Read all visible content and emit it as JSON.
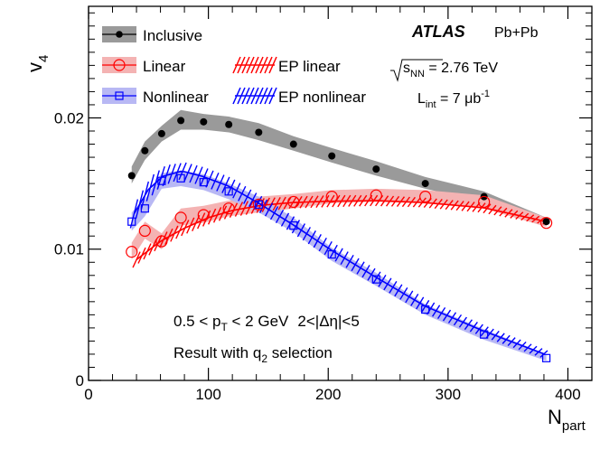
{
  "chart_data": {
    "type": "scatter",
    "title": "",
    "xlabel": "N",
    "xlabel_sub": "part",
    "ylabel": "v",
    "ylabel_sub": "4",
    "xlim": [
      0,
      420
    ],
    "ylim": [
      0,
      0.0285
    ],
    "x_ticks": [
      0,
      100,
      200,
      300,
      400
    ],
    "x_tick_labels": [
      "0",
      "100",
      "200",
      "300",
      "400"
    ],
    "y_ticks": [
      0,
      0.01,
      0.02
    ],
    "y_tick_labels": [
      "0",
      "0.01",
      "0.02"
    ],
    "x": [
      36,
      47,
      61,
      77,
      96,
      117,
      142,
      171,
      203,
      240,
      281,
      330,
      382
    ],
    "series": [
      {
        "name": "Inclusive",
        "marker": "filled-circle",
        "color": "#000000",
        "band_color": "#9a9a9a",
        "values": [
          0.0156,
          0.0175,
          0.0188,
          0.0198,
          0.0197,
          0.0195,
          0.0189,
          0.018,
          0.0171,
          0.0161,
          0.015,
          0.014,
          0.0121
        ],
        "band_low": [
          0.015,
          0.0168,
          0.0182,
          0.0191,
          0.0191,
          0.0189,
          0.0183,
          0.0175,
          0.0166,
          0.0156,
          0.0146,
          0.0136,
          0.0118
        ],
        "band_high": [
          0.0163,
          0.0182,
          0.0194,
          0.0206,
          0.0203,
          0.0201,
          0.0196,
          0.0186,
          0.0177,
          0.0167,
          0.0155,
          0.0144,
          0.0124
        ]
      },
      {
        "name": "Linear",
        "marker": "open-circle",
        "color": "#ff0000",
        "band_color": "#f4b3b3",
        "values": [
          0.0098,
          0.0114,
          0.0106,
          0.0124,
          0.0126,
          0.0131,
          0.0134,
          0.0136,
          0.014,
          0.0141,
          0.014,
          0.0136,
          0.012
        ],
        "band_low": [
          0.0092,
          0.0108,
          0.01,
          0.0118,
          0.012,
          0.0125,
          0.0128,
          0.0131,
          0.0135,
          0.0136,
          0.0135,
          0.0131,
          0.0117
        ],
        "band_high": [
          0.0105,
          0.0121,
          0.0112,
          0.0131,
          0.0133,
          0.0137,
          0.014,
          0.0142,
          0.0145,
          0.0146,
          0.0145,
          0.0141,
          0.0124
        ]
      },
      {
        "name": "Nonlinear",
        "marker": "open-square",
        "color": "#0000ff",
        "band_color": "#b8b8f4",
        "values": [
          0.0121,
          0.0131,
          0.0152,
          0.0154,
          0.0151,
          0.0144,
          0.0134,
          0.0118,
          0.0096,
          0.0077,
          0.0054,
          0.0035,
          0.0017
        ],
        "band_low": [
          0.0114,
          0.0125,
          0.0146,
          0.0148,
          0.0145,
          0.0138,
          0.0128,
          0.0113,
          0.0091,
          0.0072,
          0.005,
          0.0031,
          0.0015
        ],
        "band_high": [
          0.0128,
          0.0138,
          0.0158,
          0.016,
          0.0157,
          0.015,
          0.014,
          0.0124,
          0.0101,
          0.0082,
          0.0058,
          0.0039,
          0.002
        ]
      }
    ],
    "ep_curves": [
      {
        "name": "EP linear",
        "color": "#ff0000",
        "x": [
          40,
          60,
          80,
          100,
          120,
          145,
          170,
          200,
          240,
          280,
          330,
          382
        ],
        "low": [
          0.0086,
          0.01,
          0.011,
          0.0118,
          0.0124,
          0.0128,
          0.0131,
          0.0132,
          0.0133,
          0.0132,
          0.0128,
          0.0119
        ],
        "high": [
          0.0098,
          0.0112,
          0.0122,
          0.013,
          0.0135,
          0.0139,
          0.014,
          0.0141,
          0.0141,
          0.0139,
          0.0135,
          0.0123
        ]
      },
      {
        "name": "EP nonlinear",
        "color": "#0000ff",
        "x": [
          38,
          50,
          62,
          78,
          95,
          117,
          142,
          170,
          203,
          240,
          281,
          330,
          382
        ],
        "low": [
          0.0116,
          0.0135,
          0.0147,
          0.0153,
          0.0149,
          0.0142,
          0.013,
          0.0114,
          0.0094,
          0.0074,
          0.0052,
          0.0034,
          0.0017
        ],
        "high": [
          0.0138,
          0.0156,
          0.0164,
          0.0166,
          0.0162,
          0.0154,
          0.014,
          0.0124,
          0.0104,
          0.0083,
          0.0061,
          0.0041,
          0.0022
        ]
      }
    ],
    "legend": {
      "placement": "top-left",
      "entries": [
        "Inclusive",
        "Linear",
        "Nonlinear",
        "EP linear",
        "EP nonlinear"
      ]
    },
    "annotations": {
      "experiment": "ATLAS",
      "system": "Pb+Pb",
      "energy_label": "s",
      "energy_sub": "NN",
      "energy_value": " = 2.76 TeV",
      "lumi_label": "L",
      "lumi_sub": "int",
      "lumi_value": " = 7 μb",
      "lumi_sup": "-1",
      "cut_pt_pre": "0.5 < p",
      "cut_pt_sub": "T",
      "cut_pt_post": " < 2 GeV",
      "cut_eta": "2<|Δη|<5",
      "selection_pre": "Result with q",
      "selection_sub": "2",
      "selection_post": " selection"
    },
    "grid": false
  }
}
